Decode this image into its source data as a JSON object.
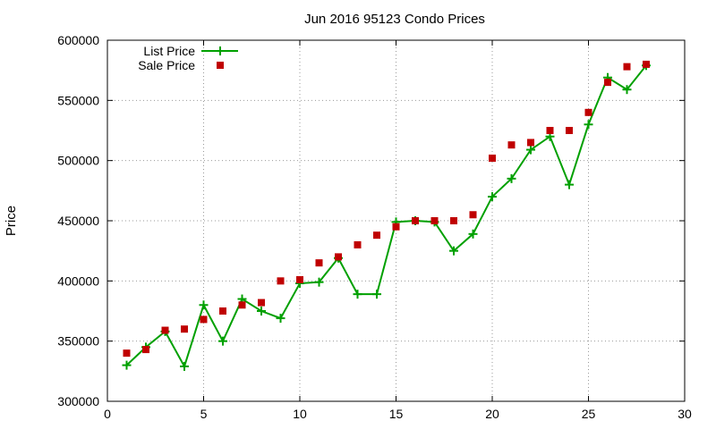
{
  "chart_data": {
    "type": "line",
    "title": "Jun 2016 95123 Condo Prices",
    "xlabel": "",
    "ylabel": "Price",
    "xlim": [
      0,
      30
    ],
    "ylim": [
      300000,
      600000
    ],
    "xticks": [
      0,
      5,
      10,
      15,
      20,
      25,
      30
    ],
    "yticks": [
      300000,
      350000,
      400000,
      450000,
      500000,
      550000,
      600000
    ],
    "grid": true,
    "legend_position": "top-left",
    "series": [
      {
        "name": "List Price",
        "style": "line+cross",
        "color": "#00a000",
        "points": [
          [
            1,
            330000
          ],
          [
            2,
            345000
          ],
          [
            3,
            358000
          ],
          [
            4,
            329000
          ],
          [
            5,
            380000
          ],
          [
            6,
            350000
          ],
          [
            7,
            385000
          ],
          [
            8,
            375000
          ],
          [
            9,
            369000
          ],
          [
            10,
            398000
          ],
          [
            11,
            399000
          ],
          [
            12,
            419000
          ],
          [
            13,
            389000
          ],
          [
            14,
            389000
          ],
          [
            15,
            449000
          ],
          [
            16,
            450000
          ],
          [
            17,
            449000
          ],
          [
            18,
            425000
          ],
          [
            19,
            439000
          ],
          [
            20,
            470000
          ],
          [
            21,
            485000
          ],
          [
            22,
            509000
          ],
          [
            23,
            520000
          ],
          [
            24,
            480000
          ],
          [
            25,
            530000
          ],
          [
            26,
            569000
          ],
          [
            27,
            559000
          ],
          [
            28,
            579000
          ]
        ]
      },
      {
        "name": "Sale Price",
        "style": "square",
        "color": "#c00000",
        "points": [
          [
            1,
            340000
          ],
          [
            2,
            343000
          ],
          [
            3,
            359000
          ],
          [
            4,
            360000
          ],
          [
            5,
            368000
          ],
          [
            6,
            375000
          ],
          [
            7,
            380000
          ],
          [
            8,
            382000
          ],
          [
            9,
            400000
          ],
          [
            10,
            401000
          ],
          [
            11,
            415000
          ],
          [
            12,
            420000
          ],
          [
            13,
            430000
          ],
          [
            14,
            438000
          ],
          [
            15,
            445000
          ],
          [
            16,
            450000
          ],
          [
            17,
            450000
          ],
          [
            18,
            450000
          ],
          [
            19,
            455000
          ],
          [
            20,
            502000
          ],
          [
            21,
            513000
          ],
          [
            22,
            515000
          ],
          [
            23,
            525000
          ],
          [
            24,
            525000
          ],
          [
            25,
            540000
          ],
          [
            26,
            565000
          ],
          [
            27,
            578000
          ],
          [
            28,
            580000
          ]
        ]
      }
    ]
  }
}
